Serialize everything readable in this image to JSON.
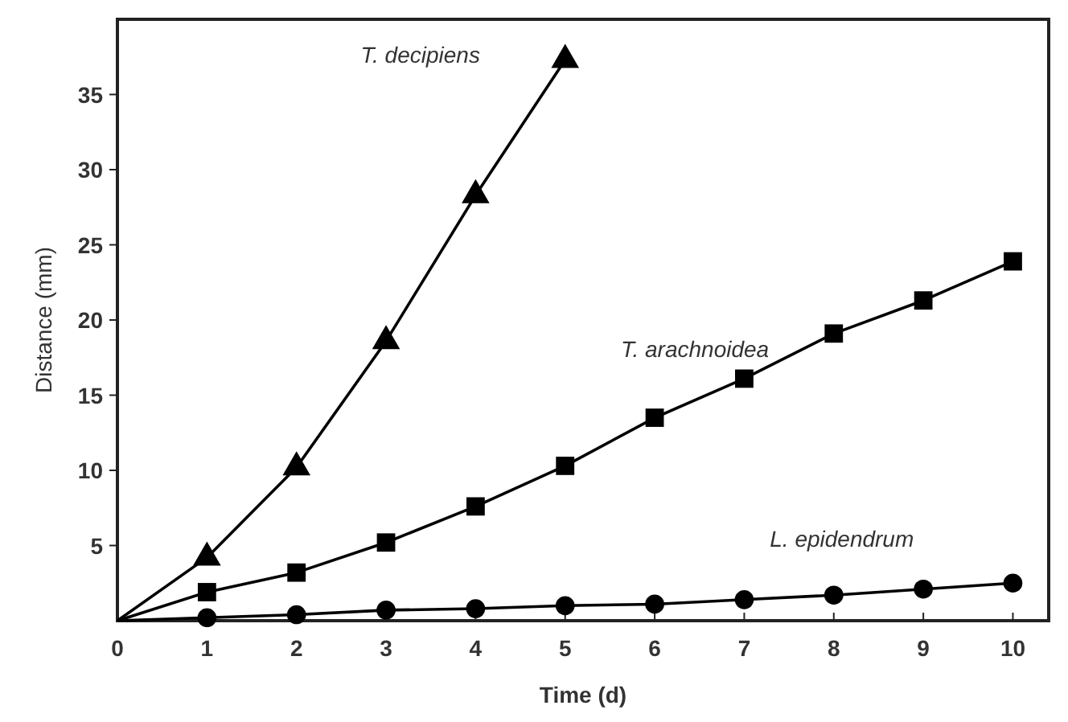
{
  "chart_data": {
    "type": "line",
    "xlabel": "Time (d)",
    "ylabel": "Distance (mm)",
    "xlim": [
      0,
      10.4
    ],
    "ylim": [
      0,
      40
    ],
    "xticks": [
      0,
      1,
      2,
      3,
      4,
      5,
      6,
      7,
      8,
      9,
      10
    ],
    "yticks": [
      5,
      10,
      15,
      20,
      25,
      30,
      35
    ],
    "grid": false,
    "line_style": "solid",
    "series": [
      {
        "name": "T. decipiens",
        "color": "#000000",
        "marker": "triangle",
        "x": [
          0,
          1,
          2,
          3,
          4,
          5
        ],
        "values": [
          0,
          4.2,
          10.2,
          18.6,
          28.3,
          37.3
        ]
      },
      {
        "name": "T. arachnoidea",
        "color": "#000000",
        "marker": "square",
        "x": [
          0,
          1,
          2,
          3,
          4,
          5,
          6,
          7,
          8,
          9,
          10
        ],
        "values": [
          0,
          1.9,
          3.2,
          5.2,
          7.6,
          10.3,
          13.5,
          16.1,
          19.1,
          21.3,
          23.9
        ]
      },
      {
        "name": "L. epidendrum",
        "color": "#000000",
        "marker": "circle",
        "x": [
          0,
          1,
          2,
          3,
          4,
          5,
          6,
          7,
          8,
          9,
          10
        ],
        "values": [
          0,
          0.2,
          0.4,
          0.7,
          0.8,
          1,
          1.1,
          1.4,
          1.7,
          2.1,
          2.5
        ]
      }
    ]
  }
}
